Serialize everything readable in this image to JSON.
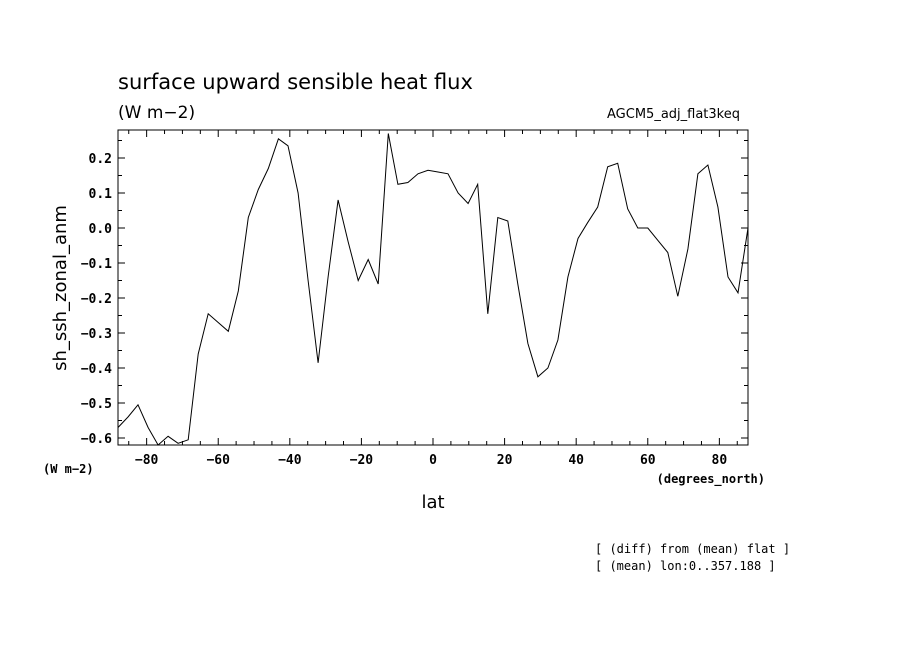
{
  "chart_data": {
    "type": "line",
    "title": "surface upward sensible heat flux",
    "units": "(W m−2)",
    "run_name": "AGCM5_adj_flat3keq",
    "xlabel": "lat",
    "x_units": "(degrees_north)",
    "ylabel": "sh_ssh_zonal_anm",
    "y_units": "(W m−2)",
    "xlim": [
      -88,
      88
    ],
    "ylim": [
      -0.62,
      0.28
    ],
    "x_ticks": [
      -80,
      -60,
      -40,
      -20,
      0,
      20,
      40,
      60,
      80
    ],
    "x_tick_labels": [
      "−80",
      "−60",
      "−40",
      "−20",
      "0",
      "20",
      "40",
      "60",
      "80"
    ],
    "y_ticks": [
      0.2,
      0.1,
      0.0,
      -0.1,
      -0.2,
      -0.3,
      -0.4,
      -0.5,
      -0.6
    ],
    "y_tick_labels": [
      "0.2",
      "0.1",
      "0.0",
      "−0.1",
      "−0.2",
      "−0.3",
      "−0.4",
      "−0.5",
      "−0.6"
    ],
    "grid": false,
    "series": [
      {
        "x": [
          -88,
          -85.2,
          -82.4,
          -79.6,
          -76.8,
          -74.0,
          -71.2,
          -68.4,
          -65.6,
          -62.8,
          -60.0,
          -57.2,
          -54.4,
          -51.6,
          -48.8,
          -46.0,
          -43.2,
          -40.5,
          -37.7,
          -34.9,
          -32.1,
          -29.3,
          -26.5,
          -23.7,
          -20.9,
          -18.1,
          -15.3,
          -12.5,
          -9.8,
          -7.0,
          -4.2,
          -1.4,
          1.4,
          4.2,
          7.0,
          9.8,
          12.5,
          15.3,
          18.1,
          20.9,
          23.7,
          26.5,
          29.3,
          32.1,
          34.9,
          37.7,
          40.5,
          43.2,
          46.0,
          48.8,
          51.6,
          54.4,
          57.2,
          60.0,
          62.8,
          65.6,
          68.4,
          71.2,
          74.0,
          76.8,
          79.6,
          82.4,
          85.2,
          88.0
        ],
        "values": [
          -0.57,
          -0.54,
          -0.505,
          -0.57,
          -0.62,
          -0.595,
          -0.615,
          -0.605,
          -0.36,
          -0.245,
          -0.27,
          -0.295,
          -0.18,
          0.03,
          0.11,
          0.17,
          0.255,
          0.235,
          0.1,
          -0.15,
          -0.385,
          -0.14,
          0.08,
          -0.04,
          -0.15,
          -0.09,
          -0.16,
          0.27,
          0.125,
          0.13,
          0.155,
          0.165,
          0.16,
          0.155,
          0.1,
          0.07,
          0.125,
          -0.245,
          0.03,
          0.02,
          -0.16,
          -0.33,
          -0.425,
          -0.4,
          -0.32,
          -0.14,
          -0.03,
          0.015,
          0.06,
          0.175,
          0.185,
          0.055,
          0.0,
          0.0,
          -0.035,
          -0.07,
          -0.195,
          -0.06,
          0.155,
          0.18,
          0.06,
          -0.14,
          -0.185,
          0.0
        ]
      }
    ],
    "notes": [
      "[ (diff) from (mean) flat ]",
      "[ (mean) lon:0..357.188 ]"
    ]
  }
}
